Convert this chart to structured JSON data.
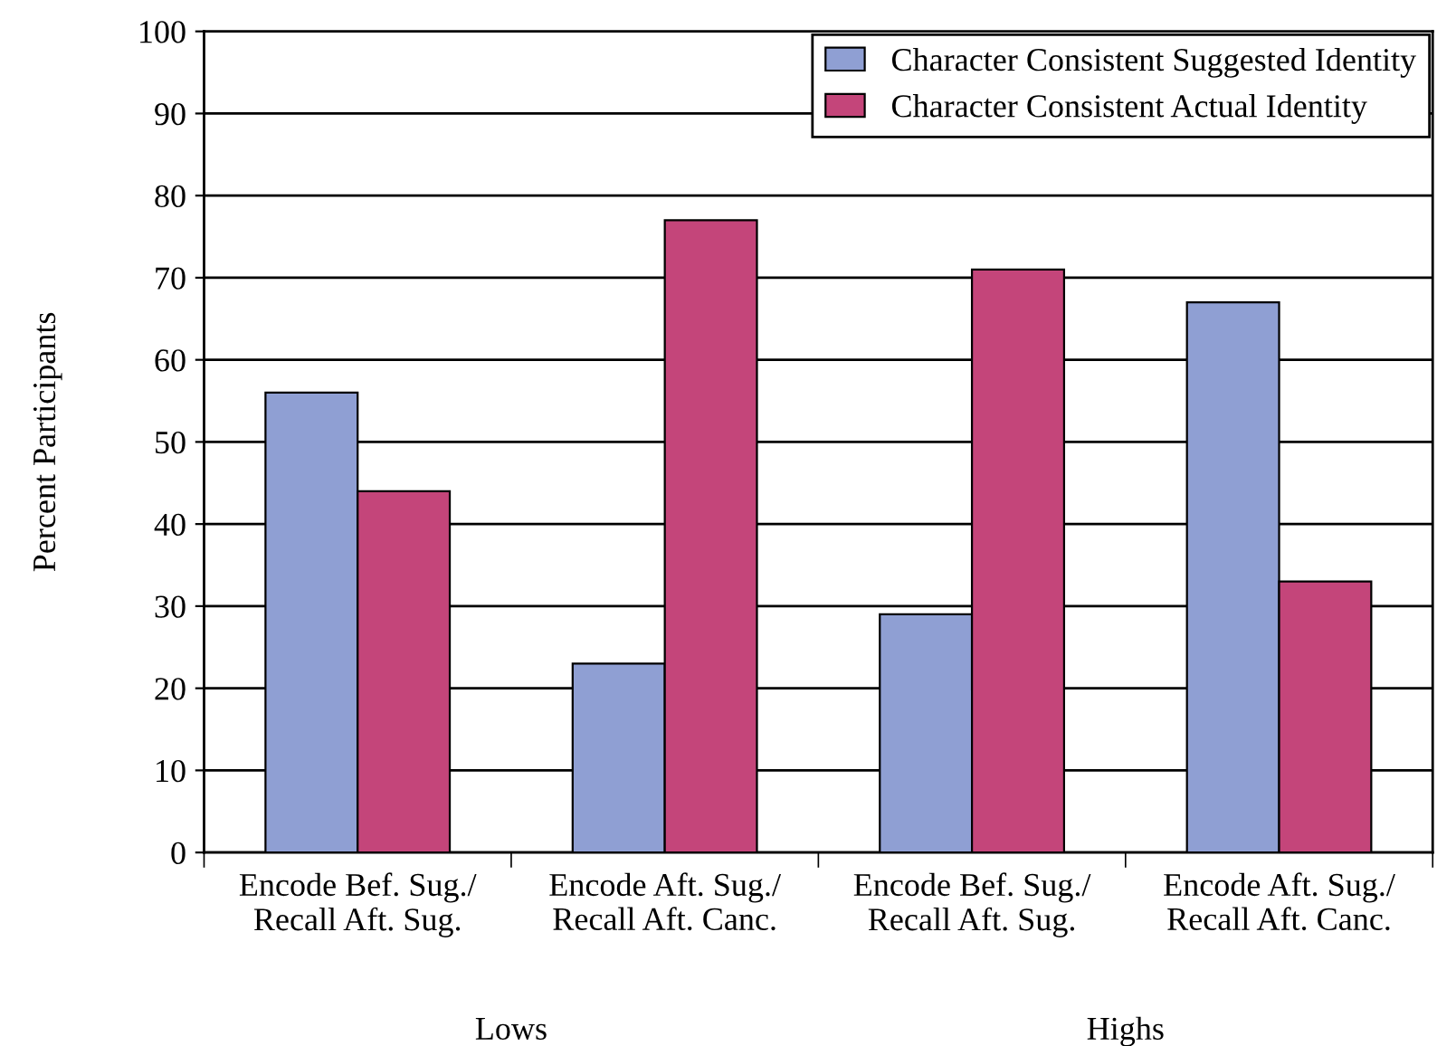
{
  "chart_data": {
    "type": "bar",
    "ylabel": "Percent Participants",
    "categories": [
      "Encode Bef. Sug./\nRecall Aft. Sug.",
      "Encode Aft. Sug./\nRecall Aft. Canc.",
      "Encode Bef. Sug./\nRecall Aft. Sug.",
      "Encode Aft. Sug./\nRecall Aft. Canc."
    ],
    "series": [
      {
        "name": "Character Consistent Suggested Identity",
        "color": "#8f9fd3",
        "values": [
          56,
          23,
          29,
          67
        ]
      },
      {
        "name": "Character Consistent Actual Identity",
        "color": "#c4457a",
        "values": [
          44,
          77,
          71,
          33
        ]
      }
    ],
    "ylim": [
      0,
      100
    ],
    "yticks": [
      0,
      10,
      20,
      30,
      40,
      50,
      60,
      70,
      80,
      90,
      100
    ],
    "grid": "y",
    "legend": "top right",
    "annotations": [
      "Lows",
      "Highs"
    ]
  }
}
